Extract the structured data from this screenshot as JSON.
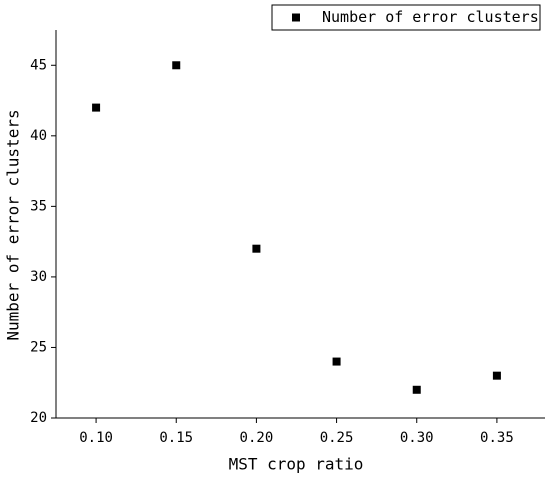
{
  "chart_data": {
    "type": "scatter",
    "xlabel": "MST crop ratio",
    "ylabel": "Number of error clusters",
    "series": [
      {
        "name": "Number of error clusters",
        "color": "#000000",
        "x": [
          0.1,
          0.15,
          0.2,
          0.25,
          0.3,
          0.35
        ],
        "values": [
          42,
          45,
          32,
          24,
          22,
          23
        ]
      }
    ],
    "xlim": [
      0.075,
      0.38
    ],
    "ylim": [
      20,
      47.5
    ],
    "xticks": [
      {
        "value": 0.1,
        "label": "0.10"
      },
      0.15,
      {
        "value": 0.2,
        "label": "0.20"
      },
      0.25,
      {
        "value": 0.3,
        "label": "0.30"
      },
      0.35
    ],
    "yticks": [
      20,
      25,
      30,
      35,
      40,
      45
    ],
    "legend": "top-right"
  }
}
